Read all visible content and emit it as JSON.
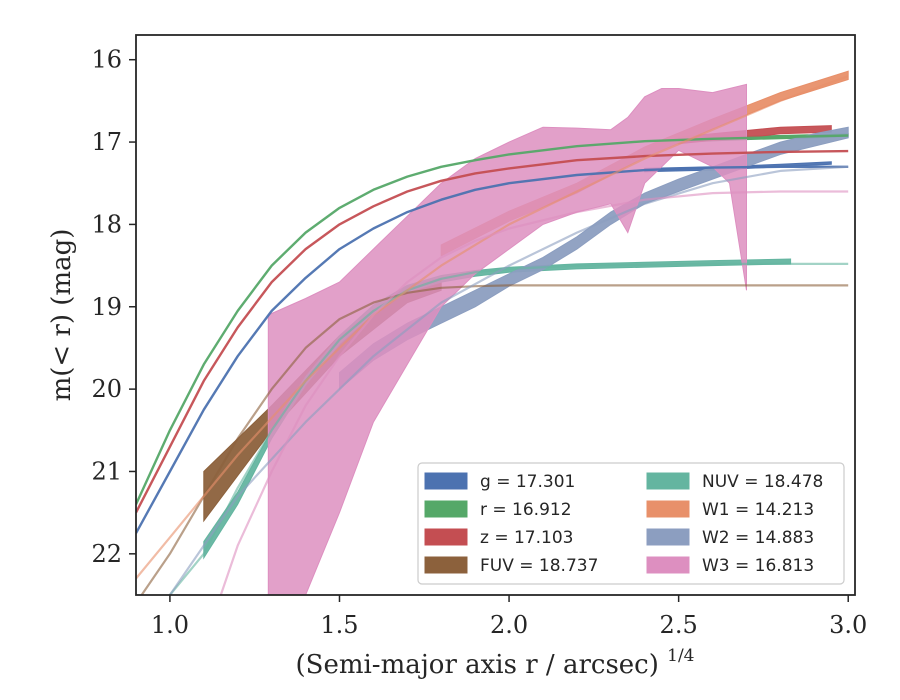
{
  "chart_data": {
    "type": "line",
    "xlabel": "(Semi-major axis r / arcsec)",
    "xlabel_italic": "r",
    "xlabel_sup": "1/4",
    "ylabel": "m(< r) (mag)",
    "xlim": [
      0.9,
      3.02
    ],
    "ylim": [
      22.5,
      15.7
    ],
    "y_inverted": true,
    "grid": false,
    "legend_placement": "lower-right",
    "xticks": [
      "1.0",
      "1.5",
      "2.0",
      "2.5",
      "3.0"
    ],
    "yticks": [
      "16",
      "17",
      "18",
      "19",
      "20",
      "21",
      "22"
    ],
    "series": [
      {
        "name": "g",
        "label": "g = 17.301",
        "color": "#4c72b0",
        "model": {
          "x": [
            0.9,
            1.0,
            1.1,
            1.2,
            1.3,
            1.4,
            1.5,
            1.6,
            1.7,
            1.8,
            1.9,
            2.0,
            2.2,
            2.4,
            2.6,
            2.8,
            3.0
          ],
          "y": [
            21.75,
            21.0,
            20.25,
            19.6,
            19.05,
            18.65,
            18.3,
            18.05,
            17.85,
            17.7,
            17.58,
            17.5,
            17.4,
            17.34,
            17.31,
            17.3,
            17.3
          ]
        },
        "profile": {
          "x": [
            2.4,
            2.6,
            2.8,
            2.95
          ],
          "y_low": [
            17.36,
            17.34,
            17.3,
            17.27
          ],
          "y_high": [
            17.32,
            17.3,
            17.27,
            17.24
          ]
        }
      },
      {
        "name": "r",
        "label": "r = 16.912",
        "color": "#55a868",
        "model": {
          "x": [
            0.9,
            1.0,
            1.1,
            1.2,
            1.3,
            1.4,
            1.5,
            1.6,
            1.7,
            1.8,
            1.9,
            2.0,
            2.2,
            2.4,
            2.6,
            2.8,
            3.0
          ],
          "y": [
            21.4,
            20.5,
            19.7,
            19.05,
            18.5,
            18.1,
            17.8,
            17.58,
            17.42,
            17.3,
            17.22,
            17.15,
            17.05,
            16.99,
            16.96,
            16.94,
            16.92
          ]
        },
        "profile": {
          "x": [
            2.5,
            2.7,
            2.9,
            3.0
          ],
          "y_low": [
            17.0,
            16.97,
            16.95,
            16.93
          ],
          "y_high": [
            16.96,
            16.93,
            16.91,
            16.9
          ]
        }
      },
      {
        "name": "z",
        "label": "z = 17.103",
        "color": "#c44e52",
        "model": {
          "x": [
            0.9,
            1.0,
            1.1,
            1.2,
            1.3,
            1.4,
            1.5,
            1.6,
            1.7,
            1.8,
            1.9,
            2.0,
            2.2,
            2.4,
            2.6,
            2.8,
            3.0
          ],
          "y": [
            21.5,
            20.7,
            19.9,
            19.25,
            18.7,
            18.3,
            18.0,
            17.78,
            17.6,
            17.47,
            17.38,
            17.32,
            17.22,
            17.17,
            17.14,
            17.12,
            17.11
          ]
        },
        "profile": {
          "x": [
            2.5,
            2.6,
            2.7,
            2.8,
            2.95
          ],
          "y_low": [
            17.02,
            16.98,
            16.95,
            16.9,
            16.88
          ],
          "y_high": [
            16.94,
            16.9,
            16.86,
            16.82,
            16.8
          ]
        }
      },
      {
        "name": "FUV",
        "label": "FUV = 18.737",
        "color": "#8c613c",
        "model": {
          "x": [
            0.9,
            1.0,
            1.1,
            1.2,
            1.3,
            1.4,
            1.5,
            1.6,
            1.7,
            1.8,
            1.9,
            2.0,
            2.2,
            2.4,
            2.6,
            2.8,
            3.0
          ],
          "y": [
            22.6,
            22.0,
            21.3,
            20.6,
            20.0,
            19.5,
            19.15,
            18.95,
            18.83,
            18.77,
            18.75,
            18.74,
            18.74,
            18.74,
            18.74,
            18.74,
            18.74
          ]
        },
        "profile": {
          "x": [
            1.1,
            1.3,
            1.5,
            1.7,
            1.8
          ],
          "y_low": [
            21.6,
            20.5,
            19.6,
            18.95,
            18.8
          ],
          "y_high": [
            21.0,
            20.2,
            19.35,
            18.75,
            18.65
          ]
        }
      },
      {
        "name": "NUV",
        "label": "NUV = 18.478",
        "color": "#64b5a0",
        "model": {
          "x": [
            1.0,
            1.1,
            1.2,
            1.3,
            1.4,
            1.5,
            1.6,
            1.7,
            1.8,
            1.9,
            2.0,
            2.2,
            2.4,
            2.6,
            2.8,
            3.0
          ],
          "y": [
            22.5,
            22.0,
            21.2,
            20.5,
            19.9,
            19.4,
            19.05,
            18.8,
            18.66,
            18.58,
            18.54,
            18.5,
            18.49,
            18.48,
            18.48,
            18.48
          ]
        },
        "profile": {
          "x": [
            1.1,
            1.2,
            1.3,
            1.4,
            1.5,
            1.6,
            1.7,
            1.8,
            1.9,
            2.0,
            2.2,
            2.4,
            2.6,
            2.83
          ],
          "y_low": [
            22.05,
            21.4,
            20.6,
            19.95,
            19.45,
            19.08,
            18.82,
            18.7,
            18.63,
            18.58,
            18.54,
            18.52,
            18.5,
            18.48
          ],
          "y_high": [
            21.85,
            21.25,
            20.5,
            19.85,
            19.35,
            18.98,
            18.74,
            18.62,
            18.56,
            18.52,
            18.48,
            18.46,
            18.44,
            18.42
          ]
        }
      },
      {
        "name": "W1",
        "label": "W1 = 14.213",
        "color": "#e8906a",
        "model": {
          "x": [
            0.9,
            1.0,
            1.2,
            1.4,
            1.6,
            1.8,
            2.0,
            2.2,
            2.4,
            2.6,
            2.8,
            3.0
          ],
          "y": [
            22.3,
            21.8,
            20.8,
            19.9,
            19.1,
            18.5,
            18.0,
            17.6,
            17.2,
            16.85,
            16.5,
            16.2
          ]
        },
        "profile": {
          "x": [
            1.8,
            2.0,
            2.2,
            2.4,
            2.6,
            2.8,
            3.0
          ],
          "y_low": [
            18.38,
            17.96,
            17.62,
            17.18,
            16.84,
            16.5,
            16.24
          ],
          "y_high": [
            18.25,
            17.84,
            17.5,
            17.06,
            16.72,
            16.4,
            16.14
          ]
        }
      },
      {
        "name": "W2",
        "label": "W2 = 14.883",
        "color": "#8c9ec0",
        "model": {
          "x": [
            1.0,
            1.2,
            1.4,
            1.6,
            1.8,
            2.0,
            2.2,
            2.4,
            2.6,
            2.8,
            3.0
          ],
          "y": [
            22.5,
            21.3,
            20.4,
            19.6,
            18.95,
            18.5,
            18.1,
            17.75,
            17.5,
            17.35,
            17.3
          ]
        },
        "profile": {
          "x": [
            1.5,
            1.6,
            1.7,
            1.8,
            1.9,
            2.0,
            2.1,
            2.2,
            2.3,
            2.4,
            2.5,
            2.6,
            2.7,
            2.8,
            2.9,
            3.0
          ],
          "y_low": [
            20.0,
            19.65,
            19.4,
            19.2,
            19.0,
            18.75,
            18.55,
            18.3,
            18.0,
            17.75,
            17.6,
            17.45,
            17.3,
            17.15,
            17.05,
            16.95
          ],
          "y_high": [
            19.8,
            19.45,
            19.2,
            19.0,
            18.8,
            18.6,
            18.4,
            18.15,
            17.85,
            17.62,
            17.45,
            17.3,
            17.15,
            17.0,
            16.9,
            16.82
          ]
        }
      },
      {
        "name": "W3",
        "label": "W3 = 16.813",
        "color": "#dd8fc0",
        "model": {
          "x": [
            1.15,
            1.2,
            1.3,
            1.4,
            1.5,
            1.6,
            1.7,
            1.8,
            1.9,
            2.0,
            2.2,
            2.4,
            2.6,
            2.8,
            3.0
          ],
          "y": [
            22.5,
            21.9,
            21.0,
            20.2,
            19.6,
            19.1,
            18.7,
            18.4,
            18.2,
            18.05,
            17.85,
            17.7,
            17.62,
            17.6,
            17.6
          ]
        },
        "profile": {
          "x": [
            1.29,
            1.4,
            1.5,
            1.6,
            1.7,
            1.8,
            1.9,
            2.0,
            2.1,
            2.2,
            2.3,
            2.35,
            2.4,
            2.45,
            2.5,
            2.6,
            2.65,
            2.7
          ],
          "y_low": [
            22.5,
            22.5,
            21.5,
            20.4,
            19.7,
            19.0,
            18.6,
            18.3,
            18.0,
            17.85,
            17.75,
            18.1,
            17.5,
            17.3,
            17.1,
            17.3,
            17.5,
            18.8
          ],
          "y_high": [
            19.1,
            18.9,
            18.7,
            18.3,
            17.9,
            17.5,
            17.2,
            17.0,
            16.82,
            16.83,
            16.85,
            16.7,
            16.45,
            16.35,
            16.35,
            16.4,
            16.35,
            16.3
          ]
        }
      }
    ]
  }
}
